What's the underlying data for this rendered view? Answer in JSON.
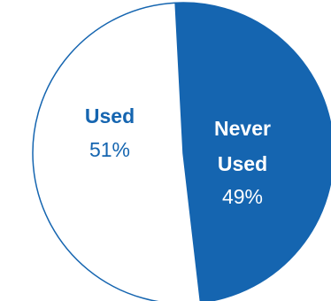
{
  "chart_data": {
    "type": "pie",
    "title": "",
    "colors": {
      "never_used": "#1565b0",
      "used": "#ffffff",
      "outline": "#1565b0"
    },
    "slices": [
      {
        "name": "Never Used",
        "name_lines": [
          "Never",
          "Used"
        ],
        "value": 49,
        "label": "49%",
        "color": "#1565b0",
        "text_color": "#ffffff"
      },
      {
        "name": "Used",
        "name_lines": [
          "Used"
        ],
        "value": 51,
        "label": "51%",
        "color": "#ffffff",
        "text_color": "#1565b0"
      }
    ]
  }
}
